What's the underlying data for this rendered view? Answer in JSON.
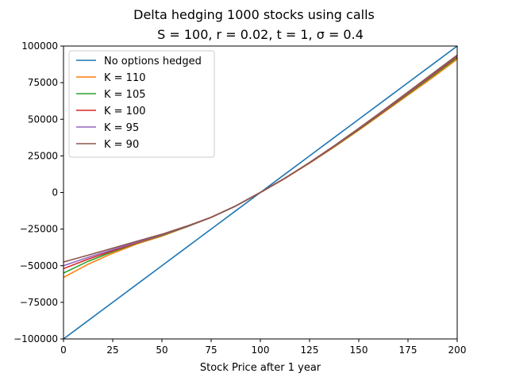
{
  "chart_data": {
    "type": "line",
    "title": "Delta hedging 1000 stocks using calls",
    "subtitle": "S = 100, r = 0.02, t = 1, σ = 0.4",
    "xlabel": "Stock Price after 1 year",
    "ylabel": "",
    "xlim": [
      0,
      200
    ],
    "ylim": [
      -100000,
      100000
    ],
    "x_ticks": [
      0,
      25,
      50,
      75,
      100,
      125,
      150,
      175,
      200
    ],
    "y_ticks": [
      -100000,
      -75000,
      -50000,
      -25000,
      0,
      25000,
      50000,
      75000,
      100000
    ],
    "x_tick_labels": [
      "0",
      "25",
      "50",
      "75",
      "100",
      "125",
      "150",
      "175",
      "200"
    ],
    "y_tick_labels": [
      "−100000",
      "−75000",
      "−50000",
      "−25000",
      "0",
      "25000",
      "50000",
      "75000",
      "100000"
    ],
    "grid": false,
    "legend_position": "top-left",
    "x": [
      0,
      12.5,
      25,
      37.5,
      50,
      62.5,
      75,
      87.5,
      100,
      112.5,
      125,
      137.5,
      150,
      162.5,
      175,
      187.5,
      200
    ],
    "series": [
      {
        "name": "No options hedged",
        "color": "#1f77b4",
        "values": [
          -100000,
          -87500,
          -75000,
          -62500,
          -50000,
          -37500,
          -25000,
          -12500,
          0,
          12500,
          25000,
          37500,
          50000,
          62500,
          75000,
          87500,
          100000
        ]
      },
      {
        "name": "K = 110",
        "color": "#ff7f0e",
        "values": [
          -58000,
          -49000,
          -41500,
          -35000,
          -29800,
          -23500,
          -17000,
          -9200,
          0,
          9600,
          20000,
          31000,
          42500,
          54500,
          66500,
          78500,
          91000
        ]
      },
      {
        "name": "K = 105",
        "color": "#2ca02c",
        "values": [
          -55000,
          -47000,
          -40500,
          -34500,
          -29300,
          -23500,
          -17000,
          -9200,
          0,
          9700,
          20200,
          31300,
          43000,
          55000,
          67200,
          79500,
          92000
        ]
      },
      {
        "name": "K = 100",
        "color": "#d62728",
        "values": [
          -52000,
          -45500,
          -39800,
          -34200,
          -29000,
          -23300,
          -17000,
          -9200,
          0,
          9700,
          20300,
          31500,
          43300,
          55400,
          67800,
          80200,
          92800
        ]
      },
      {
        "name": "K = 95",
        "color": "#9467bd",
        "values": [
          -50000,
          -44300,
          -39000,
          -33800,
          -28800,
          -23200,
          -17000,
          -9200,
          0,
          9800,
          20400,
          31700,
          43600,
          55800,
          68300,
          80800,
          93500
        ]
      },
      {
        "name": "K = 90",
        "color": "#8c564b",
        "values": [
          -47500,
          -42800,
          -38000,
          -33200,
          -28500,
          -23000,
          -16900,
          -9200,
          0,
          9800,
          20500,
          31900,
          43800,
          56100,
          68600,
          81200,
          93800
        ]
      }
    ]
  }
}
